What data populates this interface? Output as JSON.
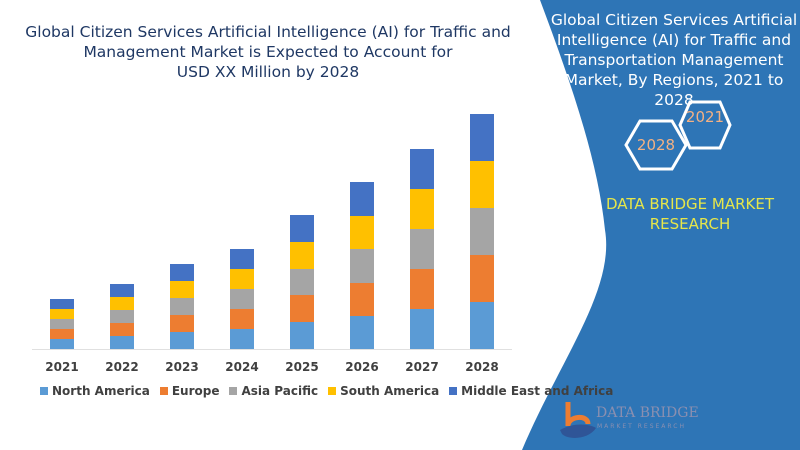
{
  "title": [
    "Global Citizen Services Artificial Intelligence (AI) for Traffic and",
    "Management Market is Expected to Account for",
    "USD XX Million by 2028"
  ],
  "side_panel": {
    "title": [
      "Global Citizen Services Artificial",
      "Intelligence (AI) for Traffic and",
      "Transportation Management",
      "Market,  By Regions, 2021 to 2028"
    ],
    "hex_years": [
      "2021",
      "2028"
    ],
    "brand": [
      "DATA BRIDGE MARKET",
      "RESEARCH"
    ],
    "panel_color": "#2e75b6"
  },
  "logo": {
    "name": "DATA BRIDGE",
    "sub": "MARKET RESEARCH"
  },
  "chart_data": {
    "type": "bar",
    "stacked": true,
    "title": "",
    "xlabel": "",
    "ylabel": "",
    "grid": false,
    "legend_position": "bottom",
    "categories": [
      "2021",
      "2022",
      "2023",
      "2024",
      "2025",
      "2026",
      "2027",
      "2028"
    ],
    "series": [
      {
        "name": "North America",
        "color": "#5b9bd5",
        "values": [
          1.0,
          1.3,
          1.7,
          2.0,
          2.7,
          3.3,
          4.0,
          4.7
        ]
      },
      {
        "name": "Europe",
        "color": "#ed7d31",
        "values": [
          1.0,
          1.3,
          1.7,
          2.0,
          2.7,
          3.3,
          4.0,
          4.7
        ]
      },
      {
        "name": "Asia Pacific",
        "color": "#a5a5a5",
        "values": [
          1.0,
          1.3,
          1.7,
          2.0,
          2.6,
          3.4,
          4.0,
          4.7
        ]
      },
      {
        "name": "South America",
        "color": "#ffc000",
        "values": [
          1.0,
          1.3,
          1.7,
          2.0,
          2.7,
          3.3,
          4.0,
          4.7
        ]
      },
      {
        "name": "Middle East and Africa",
        "color": "#4472c4",
        "values": [
          1.0,
          1.3,
          1.7,
          2.0,
          2.7,
          3.4,
          4.0,
          4.7
        ]
      }
    ]
  }
}
